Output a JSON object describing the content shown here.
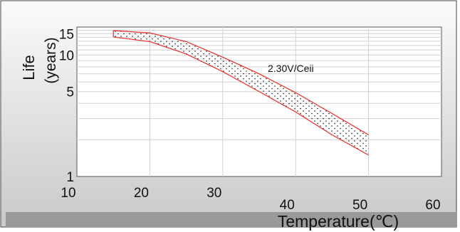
{
  "chart_data": {
    "type": "area",
    "title": "",
    "xlabel": "Temperature(℃)",
    "ylabel": "Life (years)",
    "ylabel_parts": [
      "Life",
      "(years)"
    ],
    "annotation": "2.30V/Ceii",
    "x_ticks": [
      "10",
      "20",
      "30",
      "40",
      "50",
      "60"
    ],
    "y_ticks": [
      "15",
      "10",
      "5",
      "1"
    ],
    "x_range": [
      10,
      60
    ],
    "y_range": [
      1,
      17
    ],
    "y_scale": "log",
    "grid": true,
    "series": [
      {
        "name": "",
        "x": [
          15,
          20,
          25,
          30,
          35,
          40,
          45,
          50
        ],
        "upper": [
          15.9,
          15.2,
          12.9,
          9.6,
          7.0,
          4.9,
          3.3,
          2.2
        ],
        "lower": [
          14.1,
          12.9,
          10.2,
          7.3,
          5.0,
          3.4,
          2.2,
          1.5
        ]
      }
    ],
    "colors": {
      "band_edge": "#e83a3a",
      "band_dots": "#111111",
      "axis": "#333333",
      "grid": "#d2d2d2"
    }
  }
}
